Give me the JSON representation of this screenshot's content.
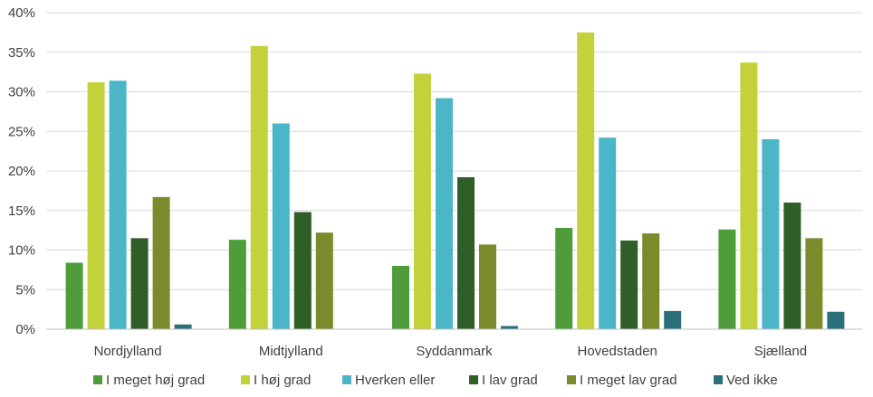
{
  "chart_data": {
    "type": "bar",
    "title": "",
    "xlabel": "",
    "ylabel": "",
    "ylim": [
      0,
      40
    ],
    "y_ticks": [
      "0%",
      "5%",
      "10%",
      "15%",
      "20%",
      "25%",
      "30%",
      "35%",
      "40%"
    ],
    "grid": true,
    "legend_position": "bottom",
    "categories": [
      "Nordjylland",
      "Midtjylland",
      "Syddanmark",
      "Hovedstaden",
      "Sjælland"
    ],
    "series": [
      {
        "name": "I meget høj grad",
        "color": "#4f9d3a",
        "values": [
          8.4,
          11.3,
          8.0,
          12.8,
          12.6
        ]
      },
      {
        "name": "I høj grad",
        "color": "#c3d23a",
        "values": [
          31.2,
          35.8,
          32.3,
          37.5,
          33.7
        ]
      },
      {
        "name": "Hverken eller",
        "color": "#4bb6c8",
        "values": [
          31.4,
          26.0,
          29.2,
          24.2,
          24.0
        ]
      },
      {
        "name": "I lav grad",
        "color": "#2f5f26",
        "values": [
          11.5,
          14.8,
          19.2,
          11.2,
          16.0
        ]
      },
      {
        "name": "I meget lav grad",
        "color": "#7b8a2a",
        "values": [
          16.7,
          12.2,
          10.7,
          12.1,
          11.5
        ]
      },
      {
        "name": "Ved ikke",
        "color": "#2b6f7a",
        "values": [
          0.6,
          0.0,
          0.4,
          2.3,
          2.2
        ]
      }
    ]
  }
}
